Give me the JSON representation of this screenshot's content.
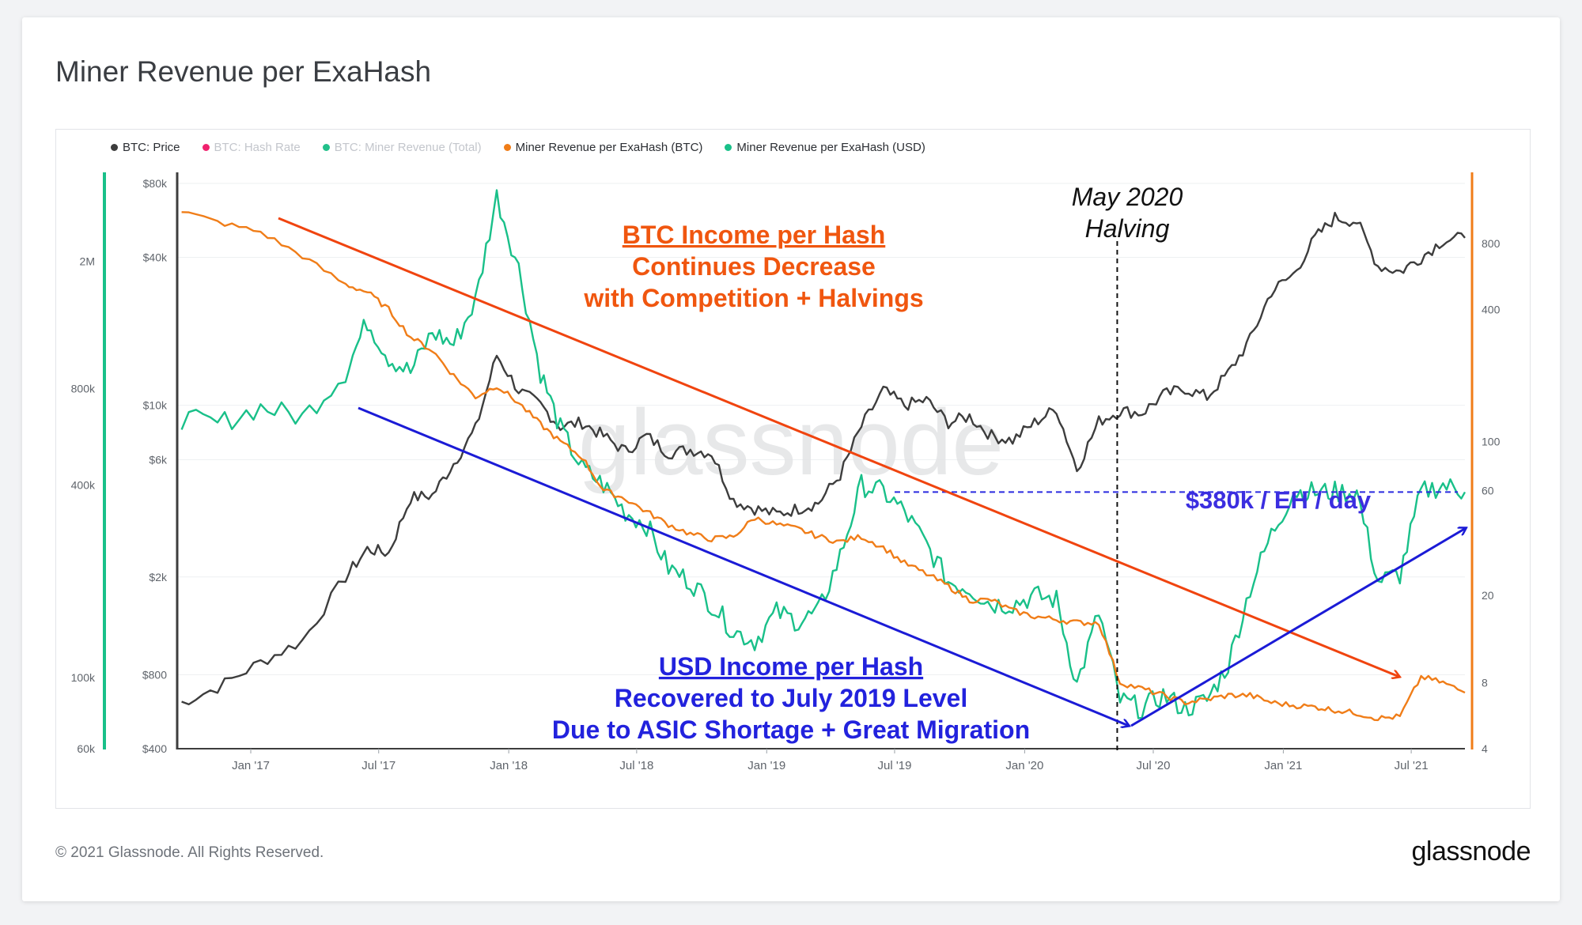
{
  "page": {
    "title": "Miner Revenue per ExaHash",
    "copyright": "© 2021 Glassnode. All Rights Reserved.",
    "brand": "glassnode",
    "watermark": "glassnode"
  },
  "legend": [
    {
      "label": "BTC: Price",
      "color": "#3d3d3d",
      "active": true
    },
    {
      "label": "BTC: Hash Rate",
      "color": "#f0226e",
      "active": false
    },
    {
      "label": "BTC: Miner Revenue (Total)",
      "color": "#22c08a",
      "active": false
    },
    {
      "label": "Miner Revenue per ExaHash (BTC)",
      "color": "#f07d18",
      "active": true
    },
    {
      "label": "Miner Revenue per ExaHash (USD)",
      "color": "#19c089",
      "active": true
    }
  ],
  "chart_data": {
    "type": "line",
    "x_axis": {
      "ticks": [
        "Jan '17",
        "Jul '17",
        "Jan '18",
        "Jul '18",
        "Jan '19",
        "Jul '19",
        "Jan '20",
        "Jul '20",
        "Jan '21",
        "Jul '21"
      ],
      "range": [
        "2016-09",
        "2021-09"
      ]
    },
    "y_axis_price": {
      "scale": "log",
      "range": [
        400,
        80000
      ],
      "ticks": [
        "$80k",
        "$40k",
        "$10k",
        "$6k",
        "$2k",
        "$800",
        "$400"
      ],
      "tick_values": [
        80000,
        40000,
        10000,
        6000,
        2000,
        800,
        400
      ]
    },
    "y_axis_usd_per_eh": {
      "scale": "log",
      "range": [
        60000,
        3500000
      ],
      "ticks": [
        "2M",
        "800k",
        "400k",
        "100k",
        "60k"
      ],
      "tick_values": [
        2000000,
        800000,
        400000,
        100000,
        60000
      ]
    },
    "y_axis_btc_per_eh": {
      "scale": "log",
      "range": [
        4,
        1500
      ],
      "ticks": [
        "800",
        "400",
        "100",
        "60",
        "20",
        "8",
        "4"
      ],
      "tick_values": [
        800,
        400,
        100,
        60,
        20,
        8,
        4
      ]
    },
    "series": [
      {
        "name": "BTC: Price",
        "axis": "price",
        "color": "#3d3d3d",
        "x": [
          "2016-09",
          "2016-11",
          "2017-01",
          "2017-03",
          "2017-05",
          "2017-06",
          "2017-07",
          "2017-08",
          "2017-09",
          "2017-10",
          "2017-11",
          "2017-12",
          "2018-01",
          "2018-02",
          "2018-03",
          "2018-04",
          "2018-05",
          "2018-06",
          "2018-07",
          "2018-08",
          "2018-09",
          "2018-10",
          "2018-11",
          "2018-12",
          "2019-01",
          "2019-02",
          "2019-03",
          "2019-04",
          "2019-05",
          "2019-06",
          "2019-07",
          "2019-08",
          "2019-09",
          "2019-10",
          "2019-11",
          "2019-12",
          "2020-01",
          "2020-02",
          "2020-03",
          "2020-04",
          "2020-05",
          "2020-06",
          "2020-07",
          "2020-08",
          "2020-09",
          "2020-10",
          "2020-11",
          "2020-12",
          "2021-01",
          "2021-02",
          "2021-03",
          "2021-04",
          "2021-05",
          "2021-06",
          "2021-07",
          "2021-08",
          "2021-09"
        ],
        "y": [
          600,
          710,
          900,
          1100,
          2000,
          2600,
          2500,
          4200,
          4300,
          5800,
          8000,
          16000,
          11500,
          10000,
          8200,
          8500,
          7500,
          6500,
          7500,
          6400,
          6600,
          6400,
          4100,
          3800,
          3600,
          3800,
          4000,
          5200,
          8200,
          11500,
          10000,
          10500,
          8500,
          9000,
          7500,
          7200,
          8500,
          9700,
          5500,
          8600,
          9500,
          9300,
          11000,
          11700,
          10800,
          13500,
          18500,
          29000,
          34000,
          48000,
          58000,
          56000,
          37000,
          35000,
          40000,
          47000,
          48000
        ]
      },
      {
        "name": "Miner Revenue per ExaHash (USD)",
        "axis": "usd_per_eh",
        "color": "#19c089",
        "x": [
          "2016-09",
          "2016-11",
          "2017-01",
          "2017-03",
          "2017-05",
          "2017-06",
          "2017-07",
          "2017-08",
          "2017-09",
          "2017-10",
          "2017-11",
          "2017-12",
          "2018-01",
          "2018-02",
          "2018-03",
          "2018-04",
          "2018-05",
          "2018-06",
          "2018-07",
          "2018-08",
          "2018-09",
          "2018-10",
          "2018-11",
          "2018-12",
          "2019-01",
          "2019-02",
          "2019-03",
          "2019-04",
          "2019-05",
          "2019-06",
          "2019-07",
          "2019-08",
          "2019-09",
          "2019-10",
          "2019-11",
          "2019-12",
          "2020-01",
          "2020-02",
          "2020-03",
          "2020-04",
          "2020-05",
          "2020-06",
          "2020-07",
          "2020-08",
          "2020-09",
          "2020-10",
          "2020-11",
          "2020-12",
          "2021-01",
          "2021-02",
          "2021-03",
          "2021-04",
          "2021-05",
          "2021-06",
          "2021-07",
          "2021-08",
          "2021-09"
        ],
        "y": [
          650000,
          620000,
          700000,
          650000,
          900000,
          1300000,
          1000000,
          900000,
          1200000,
          1100000,
          1500000,
          3200000,
          1900000,
          900000,
          600000,
          450000,
          400000,
          330000,
          300000,
          220000,
          200000,
          170000,
          140000,
          130000,
          160000,
          150000,
          160000,
          240000,
          400000,
          380000,
          330000,
          260000,
          200000,
          190000,
          170000,
          170000,
          180000,
          175000,
          95000,
          160000,
          85000,
          80000,
          88000,
          80000,
          85000,
          110000,
          190000,
          280000,
          380000,
          380000,
          380000,
          380000,
          200000,
          210000,
          380000,
          400000,
          380000
        ]
      },
      {
        "name": "Miner Revenue per ExaHash (BTC)",
        "axis": "btc_per_eh",
        "color": "#f07d18",
        "x": [
          "2016-09",
          "2016-11",
          "2017-01",
          "2017-03",
          "2017-05",
          "2017-06",
          "2017-07",
          "2017-08",
          "2017-09",
          "2017-10",
          "2017-11",
          "2017-12",
          "2018-01",
          "2018-02",
          "2018-03",
          "2018-04",
          "2018-05",
          "2018-06",
          "2018-07",
          "2018-08",
          "2018-09",
          "2018-10",
          "2018-11",
          "2018-12",
          "2019-01",
          "2019-02",
          "2019-03",
          "2019-04",
          "2019-05",
          "2019-06",
          "2019-07",
          "2019-08",
          "2019-09",
          "2019-10",
          "2019-11",
          "2019-12",
          "2020-01",
          "2020-02",
          "2020-03",
          "2020-04",
          "2020-05",
          "2020-06",
          "2020-07",
          "2020-08",
          "2020-09",
          "2020-10",
          "2020-11",
          "2020-12",
          "2021-01",
          "2021-02",
          "2021-03",
          "2021-04",
          "2021-05",
          "2021-06",
          "2021-07",
          "2021-08",
          "2021-09"
        ],
        "y": [
          1150,
          1000,
          900,
          700,
          520,
          480,
          400,
          300,
          260,
          200,
          160,
          180,
          150,
          120,
          100,
          85,
          60,
          55,
          48,
          42,
          38,
          36,
          37,
          45,
          42,
          40,
          37,
          35,
          37,
          33,
          28,
          25,
          22,
          19,
          19,
          17,
          16,
          15.5,
          15,
          15,
          8,
          7.5,
          7,
          6.5,
          6.7,
          7,
          7,
          6.5,
          6.3,
          6.2,
          6,
          5.8,
          5.5,
          5.6,
          8.5,
          8,
          7.2
        ]
      }
    ],
    "annotations": [
      {
        "lines": [
          "BTC Income per Hash",
          "Continues Decrease",
          "with Competition + Halvings"
        ],
        "color": "#f0560f"
      },
      {
        "lines": [
          "USD Income per Hash",
          "Recovered to July 2019 Level",
          "Due to ASIC Shortage + Great Migration"
        ],
        "color": "#2222dd"
      },
      {
        "lines": [
          "May 2020",
          "Halving"
        ],
        "color": "#111111"
      },
      {
        "lines": [
          "$380k / EH / day"
        ],
        "color": "#3b2ee0"
      }
    ],
    "halving_date": "2020-05-11",
    "reference_level_usd": 380000,
    "grid": true,
    "legend_position": "top-left"
  }
}
